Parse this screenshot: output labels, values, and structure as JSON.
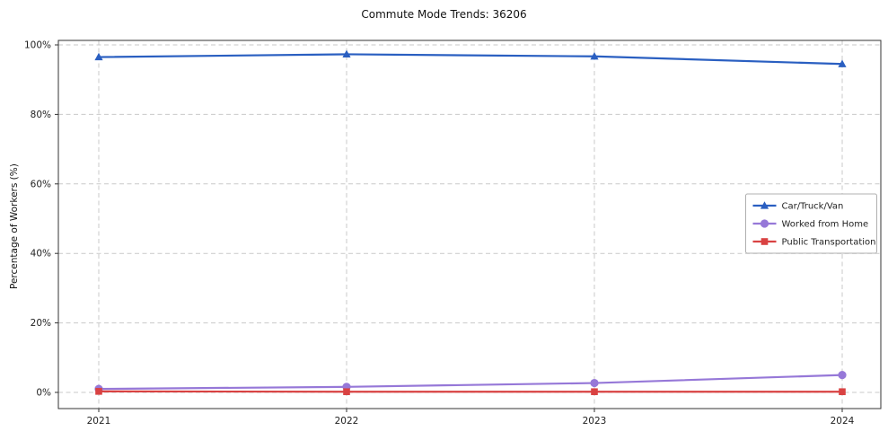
{
  "chart_data": {
    "type": "line",
    "title": "Commute Mode Trends: 36206",
    "xlabel": "",
    "ylabel": "Percentage of Workers (%)",
    "x": [
      2021,
      2022,
      2023,
      2024
    ],
    "ylim": [
      0,
      100
    ],
    "yticks": [
      0,
      20,
      40,
      60,
      80,
      100
    ],
    "ytick_labels": [
      "0%",
      "20%",
      "40%",
      "60%",
      "80%",
      "100%"
    ],
    "grid": true,
    "grid_style": "dashed",
    "legend_position": "center right",
    "series": [
      {
        "name": "Car/Truck/Van",
        "marker": "triangle",
        "color": "#2a5fc1",
        "values": [
          96.5,
          97.3,
          96.7,
          94.5
        ]
      },
      {
        "name": "Worked from Home",
        "marker": "circle",
        "color": "#9678d8",
        "values": [
          1.0,
          1.6,
          2.7,
          5.0
        ]
      },
      {
        "name": "Public Transportation",
        "marker": "square",
        "color": "#d94242",
        "values": [
          0.3,
          0.2,
          0.2,
          0.2
        ]
      }
    ]
  }
}
